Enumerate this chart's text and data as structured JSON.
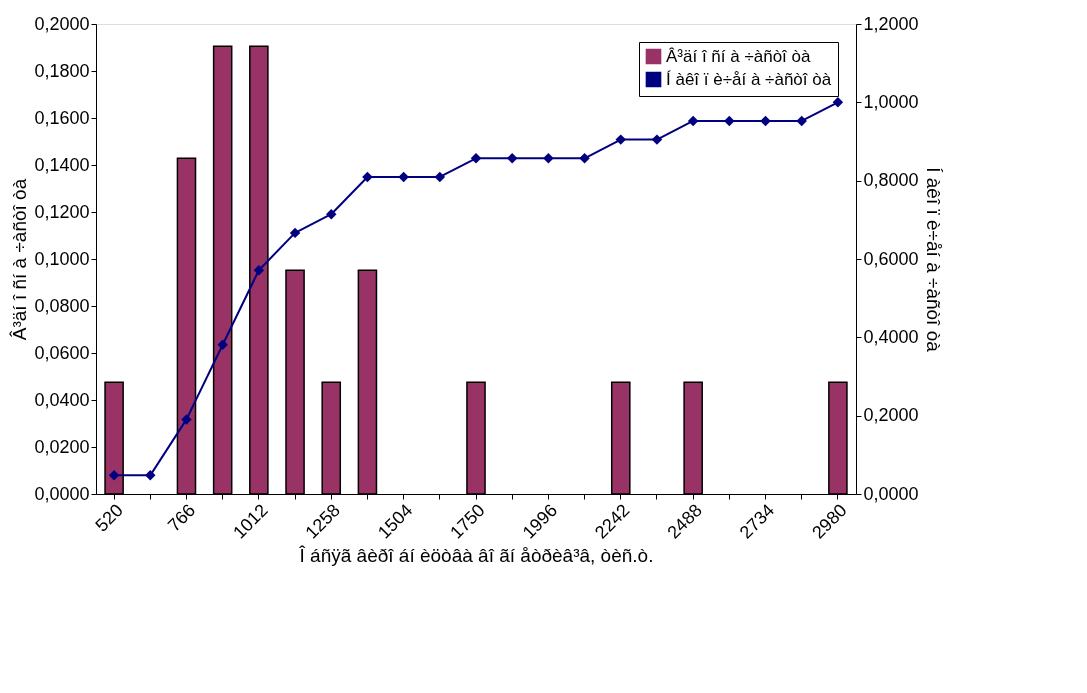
{
  "chart_data": {
    "type": "bar",
    "xlabel": "Î áñÿã âèðî áí èöòâà âî ãí åòðèâ³â, òèñ.ò.",
    "ylabel": "Â³äí î ñí à ÷àñòî òà",
    "y2label": "Í àêî ï è÷åí à ÷àñòî òà",
    "categories": [
      "520",
      null,
      "766",
      null,
      "1012",
      null,
      "1258",
      null,
      "1504",
      null,
      "1750",
      null,
      "1996",
      null,
      "2242",
      null,
      "2488",
      null,
      "2734",
      null,
      "2980"
    ],
    "series": [
      {
        "name": "Â³äí î ñí à ÷àñòî òà",
        "color": "#993366",
        "values": [
          0.0476,
          0,
          0.1429,
          0.1905,
          0.1905,
          0.0952,
          0.0476,
          0.0952,
          0,
          0,
          0.0476,
          0,
          0,
          0,
          0.0476,
          0,
          0.0476,
          0,
          0,
          0,
          0.0476
        ]
      },
      {
        "name": "Í àêî ï è÷åí à ÷àñòî òà",
        "type": "line",
        "axis": "y2",
        "color": "#000080",
        "marker": "diamond",
        "values": [
          0.0476,
          0.0476,
          0.1905,
          0.381,
          0.5714,
          0.6667,
          0.7143,
          0.8095,
          0.8095,
          0.8095,
          0.8571,
          0.8571,
          0.8571,
          0.8571,
          0.9048,
          0.9048,
          0.9524,
          0.9524,
          0.9524,
          0.9524,
          1.0
        ]
      }
    ],
    "ylim": [
      0,
      0.2
    ],
    "yticks": [
      {
        "value": 0,
        "label": "0,0000"
      },
      {
        "value": 0.02,
        "label": "0,0200"
      },
      {
        "value": 0.04,
        "label": "0,0400"
      },
      {
        "value": 0.06,
        "label": "0,0600"
      },
      {
        "value": 0.08,
        "label": "0,0800"
      },
      {
        "value": 0.1,
        "label": "0,1000"
      },
      {
        "value": 0.12,
        "label": "0,1200"
      },
      {
        "value": 0.14,
        "label": "0,1400"
      },
      {
        "value": 0.16,
        "label": "0,1600"
      },
      {
        "value": 0.18,
        "label": "0,1800"
      },
      {
        "value": 0.2,
        "label": "0,2000"
      }
    ],
    "y2lim": [
      0,
      1.2
    ],
    "y2ticks": [
      {
        "value": 0,
        "label": "0,0000"
      },
      {
        "value": 0.2,
        "label": "0,2000"
      },
      {
        "value": 0.4,
        "label": "0,4000"
      },
      {
        "value": 0.6,
        "label": "0,6000"
      },
      {
        "value": 0.8,
        "label": "0,8000"
      },
      {
        "value": 1.0,
        "label": "1,0000"
      },
      {
        "value": 1.2,
        "label": "1,2000"
      }
    ],
    "legend": "top right",
    "grid": false
  }
}
